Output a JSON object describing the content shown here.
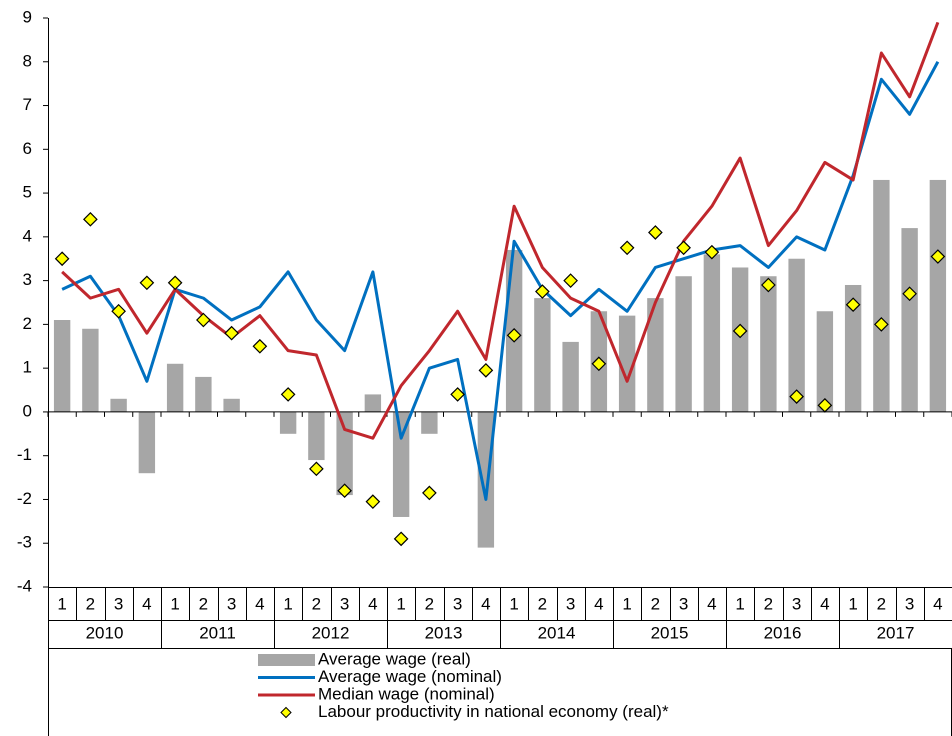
{
  "chart_data": {
    "type": "combo",
    "categories": [
      "1",
      "2",
      "3",
      "4",
      "1",
      "2",
      "3",
      "4",
      "1",
      "2",
      "3",
      "4",
      "1",
      "2",
      "3",
      "4",
      "1",
      "2",
      "3",
      "4",
      "1",
      "2",
      "3",
      "4",
      "1",
      "2",
      "3",
      "4",
      "1",
      "2",
      "3",
      "4"
    ],
    "groups": [
      "2010",
      "2011",
      "2012",
      "2013",
      "2014",
      "2015",
      "2016",
      "2017"
    ],
    "ylim": [
      -4,
      9
    ],
    "yticks": [
      -4,
      -3,
      -2,
      -1,
      0,
      1,
      2,
      3,
      4,
      5,
      6,
      7,
      8,
      9
    ],
    "series": [
      {
        "name": "Average wage (real)",
        "type": "bar",
        "color": "#a6a6a6",
        "values": [
          2.1,
          1.9,
          0.3,
          -1.4,
          1.1,
          0.8,
          0.3,
          0,
          -0.5,
          -1.1,
          -1.9,
          0.4,
          -2.4,
          -0.5,
          0,
          -3.1,
          3.7,
          2.6,
          1.6,
          2.3,
          2.2,
          2.6,
          3.1,
          3.6,
          3.3,
          3.1,
          3.5,
          2.3,
          2.9,
          5.3,
          4.2,
          5.3
        ]
      },
      {
        "name": "Average wage (nominal)",
        "type": "line",
        "color": "#0070c0",
        "values": [
          2.8,
          3.1,
          2.2,
          0.7,
          2.8,
          2.6,
          2.1,
          2.4,
          3.2,
          2.1,
          1.4,
          3.2,
          -0.6,
          1.0,
          1.2,
          -2.0,
          3.9,
          2.8,
          2.2,
          2.8,
          2.3,
          3.3,
          3.5,
          3.7,
          3.8,
          3.3,
          4.0,
          3.7,
          5.4,
          7.6,
          6.8,
          8.0
        ]
      },
      {
        "name": "Median wage (nominal)",
        "type": "line",
        "color": "#c0272d",
        "values": [
          3.2,
          2.6,
          2.8,
          1.8,
          2.8,
          2.2,
          1.7,
          2.2,
          1.4,
          1.3,
          -0.4,
          -0.6,
          0.6,
          1.4,
          2.3,
          1.2,
          4.7,
          3.3,
          2.6,
          2.3,
          0.7,
          2.5,
          3.9,
          4.7,
          5.8,
          3.8,
          4.6,
          5.7,
          5.3,
          8.2,
          7.2,
          8.9
        ]
      },
      {
        "name": "Labour productivity in national economy (real)*",
        "type": "scatter",
        "color": "#ffff00",
        "values": [
          3.5,
          4.4,
          2.3,
          2.95,
          2.95,
          2.1,
          1.8,
          1.5,
          0.4,
          -1.3,
          -1.8,
          -2.05,
          -2.9,
          -1.85,
          0.4,
          0.95,
          1.75,
          2.75,
          3.0,
          1.1,
          3.75,
          4.1,
          3.75,
          3.65,
          1.85,
          2.9,
          0.35,
          0.15,
          2.45,
          2.0,
          2.7,
          3.55
        ]
      }
    ]
  }
}
